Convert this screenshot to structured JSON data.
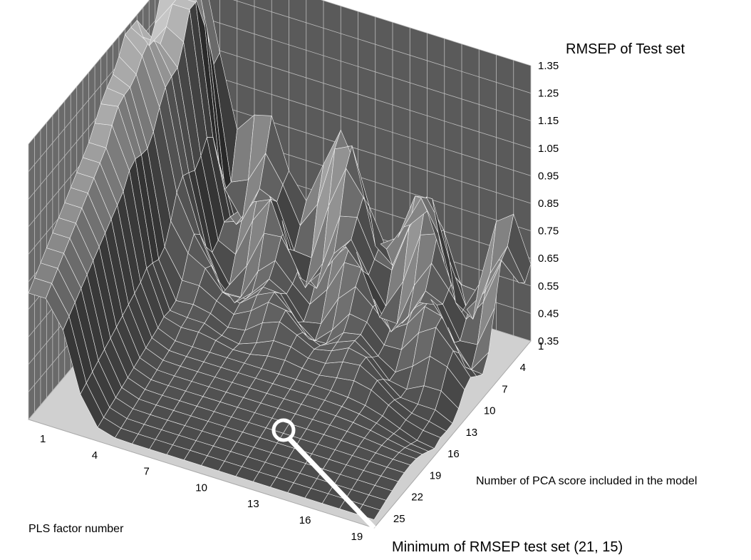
{
  "chart_data": {
    "type": "surface",
    "title": "",
    "z_axis": {
      "label": "RMSEP of Test set",
      "ticks": [
        "1.35",
        "1.25",
        "1.15",
        "1.05",
        "0.95",
        "0.85",
        "0.75",
        "0.65",
        "0.55",
        "0.45",
        "0.35"
      ],
      "range": [
        0.35,
        1.35
      ]
    },
    "x_axis": {
      "label": "PLS factor number",
      "ticks": [
        "1",
        "4",
        "7",
        "10",
        "13",
        "16",
        "19"
      ],
      "range": [
        1,
        21
      ]
    },
    "y_axis": {
      "label": "Number of PCA score included in the model",
      "ticks": [
        "1",
        "4",
        "7",
        "10",
        "13",
        "16",
        "19",
        "22",
        "25"
      ],
      "range": [
        1,
        27
      ]
    },
    "annotation": {
      "text": "Minimum of RMSEP test set (21, 15)",
      "pls_factor": 21,
      "pca_scores": 15
    },
    "colors": {
      "surface_dark": "#2c2c2c",
      "surface_light": "#d8d8d8",
      "mesh": "#f2f2f2",
      "floor": "#d0d0d0",
      "wall": "#5a5a5a"
    }
  }
}
